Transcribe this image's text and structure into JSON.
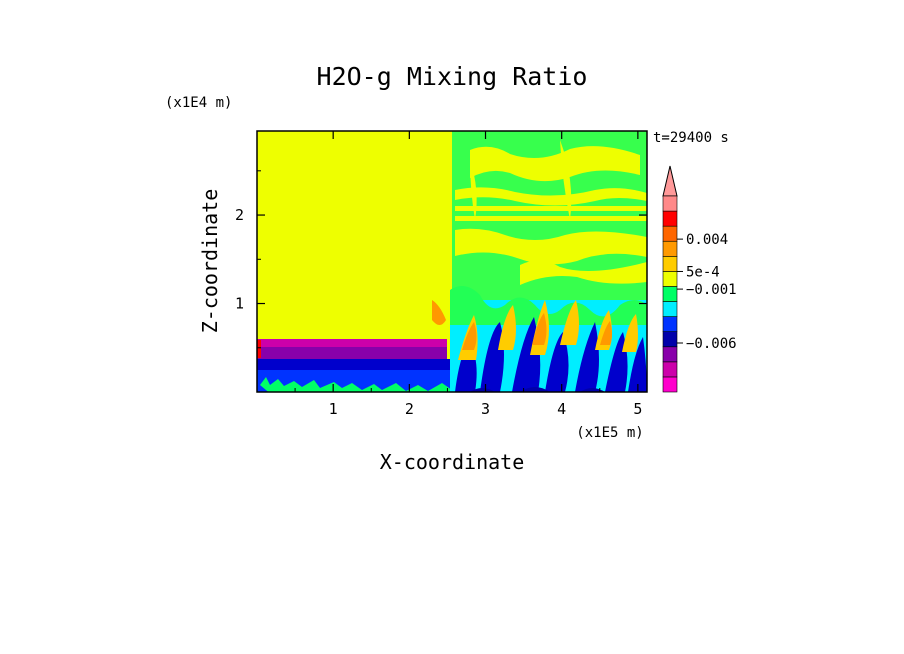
{
  "chart_data": {
    "type": "heatmap",
    "title": "H2O-g Mixing Ratio",
    "xlabel": "X-coordinate",
    "ylabel": "Z-coordinate",
    "x_units": "(x1E5 m)",
    "y_units": "(x1E4 m)",
    "time_label": "t=29400 s",
    "xlim": [
      0,
      5.12
    ],
    "ylim": [
      0,
      2.95
    ],
    "x_ticks": [
      "1",
      "2",
      "3",
      "4",
      "5"
    ],
    "y_ticks": [
      "1",
      "2"
    ],
    "colorbar": {
      "tick_labels": [
        "0.004",
        "5e-4",
        "−0.001",
        "−0.006"
      ],
      "colors": [
        "#ff00cc",
        "#cc00aa",
        "#8800aa",
        "#0000aa",
        "#0033ff",
        "#00eeff",
        "#00ff66",
        "#eeff00",
        "#ffcc00",
        "#ff9900",
        "#ff6600",
        "#ff0000",
        "#ff8888"
      ]
    },
    "regions": [
      {
        "name": "upper-left",
        "x": [
          0,
          2.5
        ],
        "z": [
          0.42,
          2.95
        ],
        "level": "yellow"
      },
      {
        "name": "boundary-layer-dry",
        "x": [
          0,
          2.5
        ],
        "z": [
          0.35,
          0.42
        ],
        "level": "purple"
      },
      {
        "name": "surface-layer",
        "x": [
          0,
          2.6
        ],
        "z": [
          0,
          0.35
        ],
        "level": "blue"
      },
      {
        "name": "upper-right",
        "x": [
          2.5,
          5.12
        ],
        "z": [
          0.9,
          2.95
        ],
        "level": "green-yellow"
      },
      {
        "name": "convective-plumes",
        "x": [
          2.5,
          5.12
        ],
        "z": [
          0,
          1.0
        ],
        "level": "mixed"
      }
    ]
  }
}
